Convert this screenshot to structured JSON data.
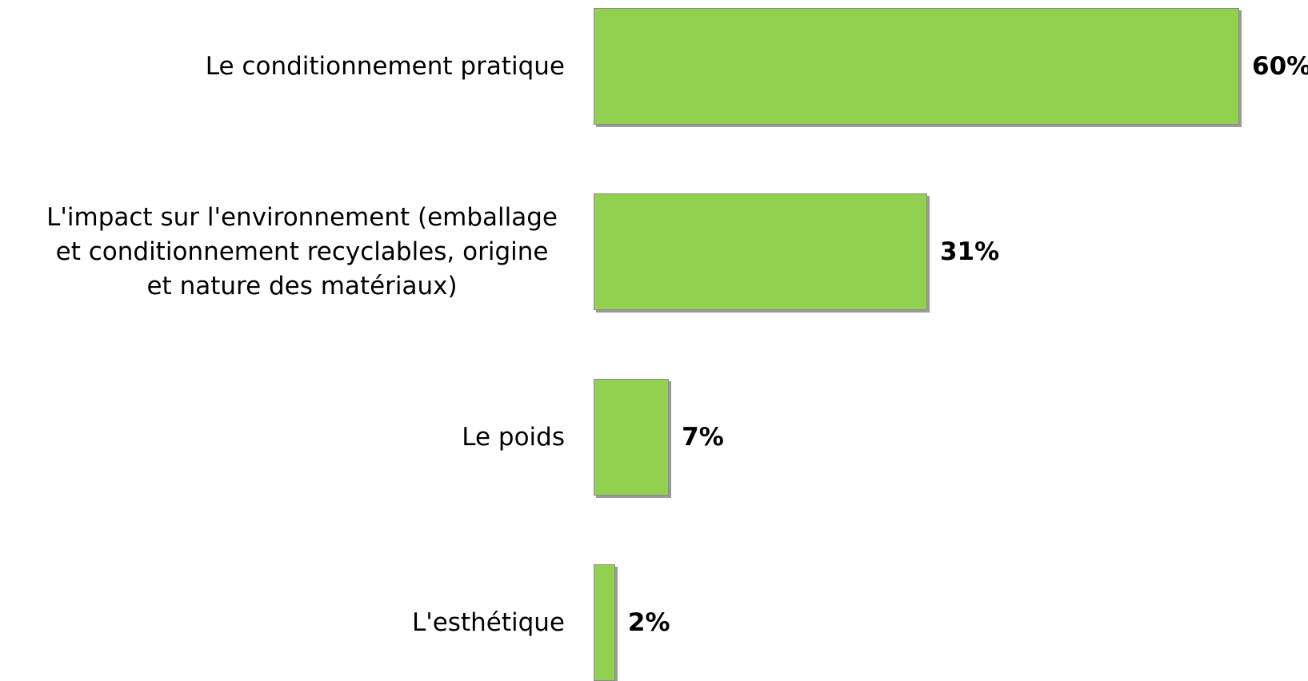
{
  "chart_data": {
    "type": "barh",
    "categories": [
      "Le conditionnement pratique",
      "L'impact sur l'environnement (emballage\net conditionnement recyclables, origine\net nature des matériaux)",
      "Le poids",
      "L'esthétique"
    ],
    "values": [
      60,
      31,
      7,
      2
    ],
    "value_labels": [
      "60%",
      "31%",
      "7%",
      "2%"
    ],
    "color": "#92d050"
  }
}
